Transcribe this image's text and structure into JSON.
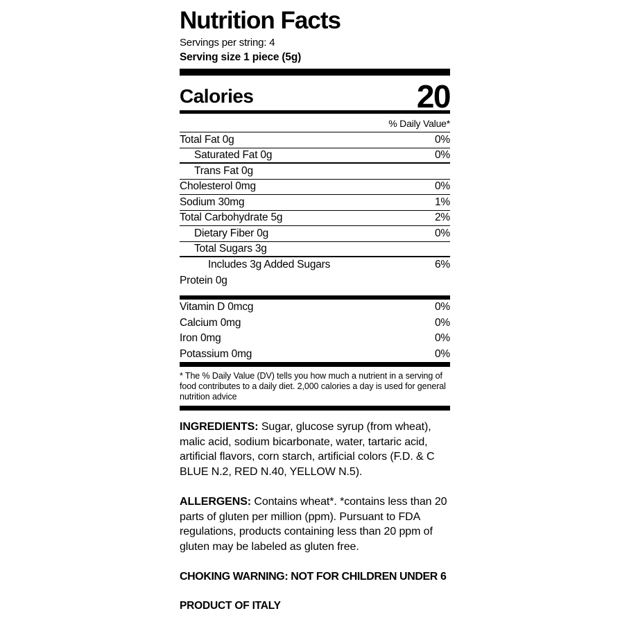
{
  "label": {
    "title": "Nutrition Facts",
    "servings_per": "Servings per string: 4",
    "serving_size": "Serving size 1 piece (5g)",
    "calories": {
      "label": "Calories",
      "value": "20"
    },
    "daily_value_header": "% Daily Value*",
    "nutrients": [
      {
        "name": "Total Fat 0g",
        "dv": "0%"
      },
      {
        "name": "Saturated Fat 0g",
        "dv": "0%"
      },
      {
        "name": "Trans Fat 0g",
        "dv": ""
      },
      {
        "name": "Cholesterol 0mg",
        "dv": "0%"
      },
      {
        "name": "Sodium 30mg",
        "dv": "1%"
      },
      {
        "name": "Total Carbohydrate 5g",
        "dv": "2%"
      },
      {
        "name": "Dietary Fiber 0g",
        "dv": "0%"
      },
      {
        "name": "Total Sugars 3g",
        "dv": ""
      },
      {
        "name": "Includes 3g Added Sugars",
        "dv": "6%"
      },
      {
        "name": "Protein 0g",
        "dv": ""
      }
    ],
    "vitamins": [
      {
        "name": "Vitamin D 0mcg",
        "dv": "0%"
      },
      {
        "name": "Calcium 0mg",
        "dv": "0%"
      },
      {
        "name": "Iron 0mg",
        "dv": "0%"
      },
      {
        "name": "Potassium 0mg",
        "dv": "0%"
      }
    ],
    "footnote": "* The % Daily Value (DV) tells you how much a nutrient in a serving of food contributes to a daily diet. 2,000 calories a day is used for general nutrition advice",
    "ingredients": {
      "heading": "INGREDIENTS:",
      "text": " Sugar, glucose syrup (from wheat), malic acid, sodium bicarbonate, water, tartaric acid, artificial flavors, corn starch, artificial colors (F.D. & C BLUE N.2, RED N.40, YELLOW N.5)."
    },
    "allergens": {
      "heading": "ALLERGENS:",
      "text": " Contains wheat*. *contains less than 20 parts of gluten per million (ppm). Pursuant to FDA regulations, products containing less than 20 ppm of gluten may be labeled as gluten free."
    },
    "choking_warning": "CHOKING WARNING: NOT FOR CHILDREN UNDER 6",
    "product_origin": "PRODUCT OF ITALY",
    "colors": {
      "text": "#000000",
      "background": "#ffffff",
      "rule": "#000000"
    }
  }
}
